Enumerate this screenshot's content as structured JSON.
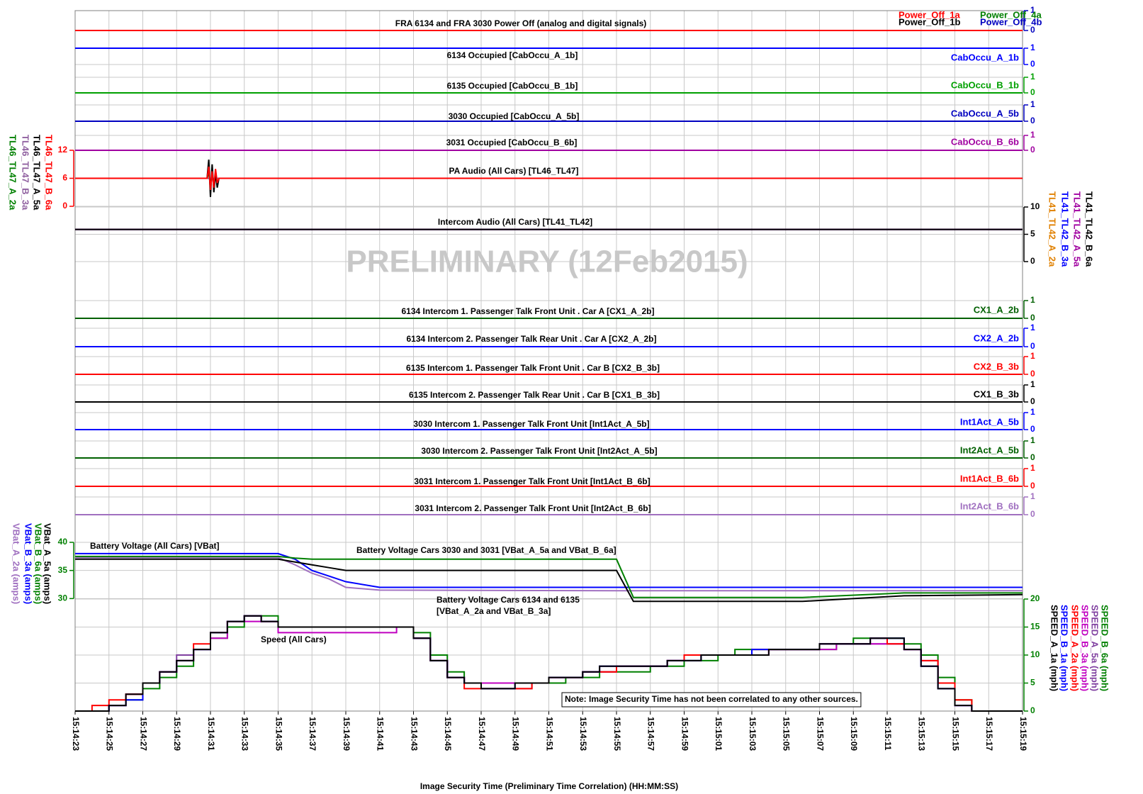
{
  "watermark": "PRELIMINARY (12Feb2015)",
  "chart_data": [
    {
      "type": "step",
      "title": "FRA 6134 and FRA 3030 Power Off (analog and digital signals)",
      "x": [
        "15:14:23",
        "15:15:19"
      ],
      "ylim": [
        0,
        1
      ],
      "yticks": [
        0,
        1
      ],
      "series": [
        {
          "name": "Power_Off_1a",
          "color": "#ff0000",
          "values": [
            0,
            0
          ]
        },
        {
          "name": "Power_Off_4a",
          "color": "#008000",
          "values": [
            0,
            0
          ]
        },
        {
          "name": "Power_Off_1b",
          "color": "#000000",
          "values": [
            0,
            0
          ]
        },
        {
          "name": "Power_Off_4b",
          "color": "#0000c0",
          "values": [
            0,
            0
          ]
        }
      ]
    },
    {
      "type": "step",
      "title": "6134 Occupied [CabOccu_A_1b]",
      "x": [
        "15:14:23",
        "15:15:19"
      ],
      "ylim": [
        0,
        1
      ],
      "yticks": [
        0,
        1
      ],
      "series": [
        {
          "name": "CabOccu_A_1b",
          "color": "#0000ff",
          "values": [
            1,
            1
          ]
        }
      ]
    },
    {
      "type": "step",
      "title": "6135 Occupied [CabOccu_B_1b]",
      "x": [
        "15:14:23",
        "15:15:19"
      ],
      "ylim": [
        0,
        1
      ],
      "yticks": [
        0,
        1
      ],
      "series": [
        {
          "name": "CabOccu_B_1b",
          "color": "#00a000",
          "values": [
            0,
            0
          ]
        }
      ]
    },
    {
      "type": "step",
      "title": "3030 Occupied [CabOccu_A_5b]",
      "x": [
        "15:14:23",
        "15:15:19"
      ],
      "ylim": [
        0,
        1
      ],
      "yticks": [
        0,
        1
      ],
      "series": [
        {
          "name": "CabOccu_A_5b",
          "color": "#0000c0",
          "values": [
            0,
            0
          ]
        }
      ]
    },
    {
      "type": "step",
      "title": "3031 Occupied [CabOccu_B_6b]",
      "x": [
        "15:14:23",
        "15:15:19"
      ],
      "ylim": [
        0,
        1
      ],
      "yticks": [
        0,
        1
      ],
      "series": [
        {
          "name": "CabOccu_B_6b",
          "color": "#a000a0",
          "values": [
            0,
            0
          ]
        }
      ]
    },
    {
      "type": "line",
      "title": "PA Audio (All Cars) [TL46_TL47]",
      "x": [
        "15:14:23",
        "15:14:30.8",
        "15:14:30.9",
        "15:14:31",
        "15:14:31.1",
        "15:14:31.2",
        "15:14:31.3",
        "15:14:31.4",
        "15:14:31.5",
        "15:15:19"
      ],
      "ylim": [
        0,
        12
      ],
      "yticks": [
        0,
        6,
        12
      ],
      "series": [
        {
          "name": "TL46_TL47_B_6a",
          "color": "#ff0000",
          "values": [
            6,
            6,
            8.5,
            3.5,
            7.5,
            4,
            8,
            5,
            6,
            6
          ]
        },
        {
          "name": "TL46_TL47_A_5a",
          "color": "#000000",
          "values": [
            6,
            6,
            10,
            2,
            9,
            3,
            7,
            4,
            6,
            6
          ]
        },
        {
          "name": "TL46_TL47_B_3a",
          "color": "#9060a0",
          "values": [
            6,
            6,
            6,
            6,
            6,
            6,
            6,
            6,
            6,
            6
          ]
        },
        {
          "name": "TL46_TL47_A_2a",
          "color": "#008000",
          "values": [
            6,
            6,
            7,
            5,
            6.5,
            5.5,
            6,
            6,
            6,
            6
          ]
        }
      ]
    },
    {
      "type": "line",
      "title": "Intercom Audio (All Cars) [TL41_TL42]",
      "x": [
        "15:14:23",
        "15:15:19"
      ],
      "ylim": [
        0,
        10
      ],
      "yticks": [
        0,
        5,
        10
      ],
      "series": [
        {
          "name": "TL41_TL42_B_6a",
          "color": "#000000",
          "values": [
            5.9,
            5.9
          ]
        },
        {
          "name": "TL41_TL42_A_5a",
          "color": "#a000a0",
          "values": [
            5.9,
            5.9
          ]
        },
        {
          "name": "TL41_TL42_B_3a",
          "color": "#0000ff",
          "values": [
            5.9,
            5.9
          ]
        },
        {
          "name": "TL41_TL42_A_2a",
          "color": "#e08000",
          "values": [
            5.9,
            5.9
          ]
        }
      ]
    },
    {
      "type": "step",
      "title": "6134 Intercom 1. Passenger Talk Front Unit . Car A [CX1_A_2b]",
      "x": [
        "15:14:23",
        "15:15:19"
      ],
      "ylim": [
        0,
        1
      ],
      "yticks": [
        0,
        1
      ],
      "series": [
        {
          "name": "CX1_A_2b",
          "color": "#006000",
          "values": [
            0,
            0
          ]
        }
      ]
    },
    {
      "type": "step",
      "title": "6134 Intercom 2. Passenger Talk Rear Unit . Car A [CX2_A_2b]",
      "x": [
        "15:14:23",
        "15:15:19"
      ],
      "ylim": [
        0,
        1
      ],
      "yticks": [
        0,
        1
      ],
      "series": [
        {
          "name": "CX2_A_2b",
          "color": "#0000ff",
          "values": [
            0,
            0
          ]
        }
      ]
    },
    {
      "type": "step",
      "title": "6135 Intercom 1. Passenger Talk Front Unit . Car B [CX2_B_3b]",
      "x": [
        "15:14:23",
        "15:15:19"
      ],
      "ylim": [
        0,
        1
      ],
      "yticks": [
        0,
        1
      ],
      "series": [
        {
          "name": "CX2_B_3b",
          "color": "#ff0000",
          "values": [
            0,
            0
          ]
        }
      ]
    },
    {
      "type": "step",
      "title": "6135 Intercom 2. Passenger Talk Rear Unit . Car B [CX1_B_3b]",
      "x": [
        "15:14:23",
        "15:15:19"
      ],
      "ylim": [
        0,
        1
      ],
      "yticks": [
        0,
        1
      ],
      "series": [
        {
          "name": "CX1_B_3b",
          "color": "#000000",
          "values": [
            0,
            0
          ]
        }
      ]
    },
    {
      "type": "step",
      "title": "3030 Intercom 1. Passenger Talk Front Unit [Int1Act_A_5b]",
      "x": [
        "15:14:23",
        "15:15:19"
      ],
      "ylim": [
        0,
        1
      ],
      "yticks": [
        0,
        1
      ],
      "series": [
        {
          "name": "Int1Act_A_5b",
          "color": "#0000ff",
          "values": [
            0,
            0
          ]
        }
      ]
    },
    {
      "type": "step",
      "title": "3030 Intercom 2. Passenger Talk Front Unit [Int2Act_A_5b]",
      "x": [
        "15:14:23",
        "15:15:19"
      ],
      "ylim": [
        0,
        1
      ],
      "yticks": [
        0,
        1
      ],
      "series": [
        {
          "name": "Int2Act_A_5b",
          "color": "#006000",
          "values": [
            0,
            0
          ]
        }
      ]
    },
    {
      "type": "step",
      "title": "3031 Intercom 1. Passenger Talk Front Unit [Int1Act_B_6b]",
      "x": [
        "15:14:23",
        "15:15:19"
      ],
      "ylim": [
        0,
        1
      ],
      "yticks": [
        0,
        1
      ],
      "series": [
        {
          "name": "Int1Act_B_6b",
          "color": "#ff0000",
          "values": [
            0,
            0
          ]
        }
      ]
    },
    {
      "type": "step",
      "title": "3031 Intercom 2. Passenger Talk Front Unit [Int2Act_B_6b]",
      "x": [
        "15:14:23",
        "15:15:19"
      ],
      "ylim": [
        0,
        1
      ],
      "yticks": [
        0,
        1
      ],
      "series": [
        {
          "name": "Int2Act_B_6b",
          "color": "#a070c0",
          "values": [
            0,
            0
          ]
        }
      ]
    },
    {
      "type": "line",
      "title": "Battery Voltage (All Cars) [VBat]",
      "annotations": [
        "Battery Voltage Cars 3030 and 3031 [VBat_A_5a and VBat_B_6a]",
        "Battery Voltage Cars 6134 and 6135",
        "[VBat_A_2a and VBat_B_3a]"
      ],
      "x": [
        "15:14:23",
        "15:14:35",
        "15:14:36",
        "15:14:37",
        "15:14:38",
        "15:14:39",
        "15:14:41",
        "15:14:55",
        "15:14:56",
        "15:15:06",
        "15:15:12",
        "15:15:19"
      ],
      "ylim": [
        10,
        40
      ],
      "yticks": [
        30,
        35,
        40
      ],
      "series": [
        {
          "name": "VBat_A_5a (amps)",
          "color": "#000000",
          "values": [
            37,
            37,
            36.5,
            36,
            35.5,
            35,
            35,
            35,
            29.5,
            29.5,
            30.5,
            30.7
          ]
        },
        {
          "name": "VBat_B_6a (amps)",
          "color": "#008000",
          "values": [
            37.5,
            37.5,
            37.2,
            37,
            37,
            37,
            37,
            37,
            30.2,
            30.2,
            31,
            31
          ]
        },
        {
          "name": "VBat_B_3a (amps)",
          "color": "#0000ff",
          "values": [
            38,
            38,
            37,
            35,
            34,
            33,
            32,
            32,
            32,
            32,
            32,
            32
          ]
        },
        {
          "name": "VBat_A_2a (amps)",
          "color": "#a070c0",
          "values": [
            37.3,
            37.3,
            36,
            34.5,
            33.5,
            32,
            31.5,
            31.4,
            31.4,
            31.4,
            31.4,
            31.4
          ]
        }
      ]
    },
    {
      "type": "step",
      "annotations": [
        "Speed (All Cars)",
        "Note: Image Security Time has not been correlated to any other sources."
      ],
      "xlabel": "Image Security Time (Preliminary Time Correlation) (HH:MM:SS)",
      "xlim": [
        "15:14:23",
        "15:15:19"
      ],
      "xticks": [
        "15:14:23",
        "15:14:25",
        "15:14:27",
        "15:14:29",
        "15:14:31",
        "15:14:33",
        "15:14:35",
        "15:14:37",
        "15:14:39",
        "15:14:41",
        "15:14:43",
        "15:14:45",
        "15:14:47",
        "15:14:49",
        "15:14:51",
        "15:14:53",
        "15:14:55",
        "15:14:57",
        "15:14:59",
        "15:15:01",
        "15:15:03",
        "15:15:05",
        "15:15:07",
        "15:15:09",
        "15:15:11",
        "15:15:13",
        "15:15:15",
        "15:15:17",
        "15:15:19"
      ],
      "x": [
        "15:14:23",
        "15:14:24",
        "15:14:25",
        "15:14:26",
        "15:14:27",
        "15:14:28",
        "15:14:29",
        "15:14:30",
        "15:14:31",
        "15:14:32",
        "15:14:33",
        "15:14:34",
        "15:14:35",
        "15:14:36",
        "15:14:37",
        "15:14:38",
        "15:14:39",
        "15:14:40",
        "15:14:41",
        "15:14:42",
        "15:14:43",
        "15:14:44",
        "15:14:45",
        "15:14:46",
        "15:14:47",
        "15:14:48",
        "15:14:49",
        "15:14:50",
        "15:14:51",
        "15:14:52",
        "15:14:53",
        "15:14:54",
        "15:14:55",
        "15:14:56",
        "15:14:57",
        "15:14:58",
        "15:14:59",
        "15:15:00",
        "15:15:01",
        "15:15:02",
        "15:15:03",
        "15:15:04",
        "15:15:05",
        "15:15:06",
        "15:15:07",
        "15:15:08",
        "15:15:09",
        "15:15:10",
        "15:15:11",
        "15:15:12",
        "15:15:13",
        "15:15:14",
        "15:15:15",
        "15:15:16",
        "15:15:17",
        "15:15:18",
        "15:15:19"
      ],
      "ylim": [
        0,
        20
      ],
      "yticks": [
        0,
        5,
        10,
        15,
        20
      ],
      "series": [
        {
          "name": "SPEED_A_1a (mph)",
          "color": "#000000",
          "values": [
            0,
            0,
            1,
            3,
            5,
            7,
            9,
            11,
            14,
            16,
            17,
            16,
            15,
            15,
            15,
            15,
            15,
            15,
            15,
            15,
            13,
            9,
            6,
            5,
            4,
            4,
            5,
            5,
            6,
            6,
            7,
            8,
            8,
            8,
            8,
            9,
            9,
            10,
            10,
            10,
            10,
            11,
            11,
            11,
            12,
            12,
            12,
            13,
            13,
            11,
            8,
            4,
            1,
            0,
            0,
            0,
            0
          ]
        },
        {
          "name": "SPEED_B_1a (mph)",
          "color": "#0000ff",
          "values": [
            0,
            0,
            1,
            2,
            5,
            7,
            9,
            11,
            14,
            16,
            17,
            16,
            15,
            15,
            15,
            15,
            15,
            15,
            15,
            15,
            13,
            9,
            6,
            5,
            4,
            4,
            5,
            5,
            6,
            6,
            7,
            8,
            8,
            8,
            8,
            9,
            9,
            10,
            10,
            10,
            11,
            11,
            11,
            11,
            12,
            12,
            12,
            13,
            13,
            11,
            8,
            4,
            1,
            0,
            0,
            0,
            0
          ]
        },
        {
          "name": "SPEED_A_2a (mph)",
          "color": "#ff0000",
          "values": [
            0,
            1,
            2,
            3,
            5,
            7,
            9,
            12,
            14,
            16,
            17,
            16,
            15,
            15,
            15,
            15,
            15,
            15,
            15,
            15,
            13,
            9,
            6,
            4,
            4,
            4,
            4,
            5,
            6,
            6,
            7,
            7,
            8,
            8,
            8,
            9,
            10,
            10,
            10,
            10,
            11,
            11,
            11,
            11,
            12,
            12,
            12,
            13,
            12,
            11,
            9,
            5,
            2,
            0,
            0,
            0,
            0
          ]
        },
        {
          "name": "SPEED_B_3a (mph)",
          "color": "#c000c0",
          "values": [
            0,
            0,
            1,
            3,
            5,
            7,
            9,
            11,
            13,
            16,
            16,
            16,
            14,
            14,
            14,
            14,
            14,
            14,
            14,
            15,
            13,
            9,
            6,
            5,
            5,
            5,
            5,
            5,
            6,
            6,
            7,
            7,
            8,
            8,
            8,
            9,
            10,
            10,
            10,
            10,
            10,
            11,
            11,
            11,
            11,
            12,
            12,
            12,
            12,
            11,
            9,
            5,
            1,
            0,
            0,
            0,
            0
          ]
        },
        {
          "name": "SPEED_A_5a (mph)",
          "color": "#8040a0",
          "values": [
            0,
            0,
            1,
            3,
            5,
            7,
            10,
            11,
            14,
            16,
            17,
            16,
            15,
            15,
            15,
            15,
            15,
            15,
            15,
            15,
            13,
            9,
            6,
            5,
            4,
            4,
            4,
            5,
            6,
            6,
            7,
            8,
            8,
            8,
            8,
            9,
            9,
            10,
            10,
            10,
            10,
            11,
            11,
            11,
            12,
            12,
            12,
            12,
            12,
            11,
            8,
            4,
            1,
            0,
            0,
            0,
            0
          ]
        },
        {
          "name": "SPEED_B_6a (mph)",
          "color": "#008000",
          "values": [
            0,
            0,
            1,
            2,
            4,
            6,
            8,
            11,
            13,
            15,
            17,
            17,
            15,
            15,
            15,
            15,
            15,
            15,
            15,
            15,
            14,
            10,
            7,
            5,
            5,
            5,
            5,
            5,
            5,
            6,
            6,
            7,
            7,
            7,
            8,
            8,
            9,
            9,
            10,
            11,
            11,
            11,
            11,
            11,
            11,
            12,
            13,
            13,
            13,
            12,
            10,
            6,
            2,
            0,
            0,
            0,
            0
          ]
        }
      ]
    }
  ]
}
